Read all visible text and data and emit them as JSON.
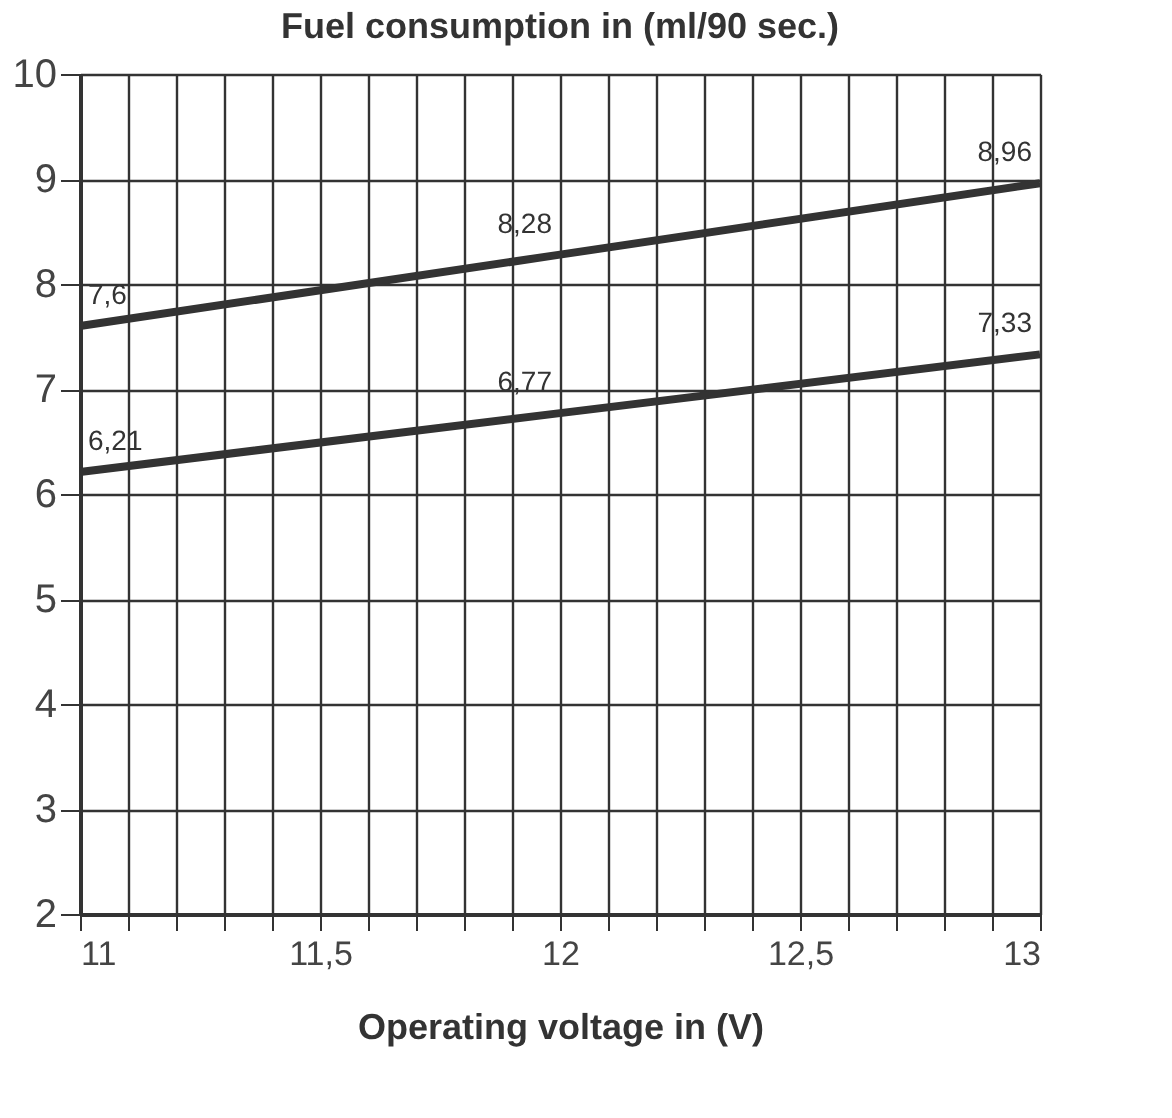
{
  "chart_data": {
    "type": "line",
    "title": "Fuel consumption in (ml/90 sec.)",
    "xlabel": "Operating voltage in (V)",
    "x": [
      11,
      12,
      13
    ],
    "series": [
      {
        "color": "#333333",
        "values": [
          7.6,
          8.28,
          8.96
        ],
        "value_labels": [
          "7,6",
          "8,28",
          "8,96"
        ]
      },
      {
        "color": "#333333",
        "values": [
          6.21,
          6.77,
          7.33
        ],
        "value_labels": [
          "6,21",
          "6,77",
          "7,33"
        ]
      }
    ],
    "xlim": [
      11,
      13
    ],
    "ylim": [
      2,
      10
    ],
    "xticks": [
      11,
      {
        "value": 11.1,
        "label": null
      },
      {
        "value": 11.2,
        "label": null
      },
      {
        "value": 11.3,
        "label": null
      },
      {
        "value": 11.4,
        "label": null
      },
      {
        "value": 11.5,
        "label": "11,5"
      },
      {
        "value": 11.6,
        "label": null
      },
      {
        "value": 11.7,
        "label": null
      },
      {
        "value": 11.8,
        "label": null
      },
      {
        "value": 11.9,
        "label": null
      },
      12,
      {
        "value": 12.1,
        "label": null
      },
      {
        "value": 12.2,
        "label": null
      },
      {
        "value": 12.3,
        "label": null
      },
      {
        "value": 12.4,
        "label": null
      },
      {
        "value": 12.5,
        "label": "12,5"
      },
      {
        "value": 12.6,
        "label": null
      },
      {
        "value": 12.7,
        "label": null
      },
      {
        "value": 12.8,
        "label": null
      },
      {
        "value": 12.9,
        "label": null
      },
      13
    ],
    "yticks": [
      2,
      3,
      4,
      5,
      6,
      7,
      8,
      9,
      10
    ],
    "grid": true,
    "marker": "none",
    "line_style": "solid"
  }
}
